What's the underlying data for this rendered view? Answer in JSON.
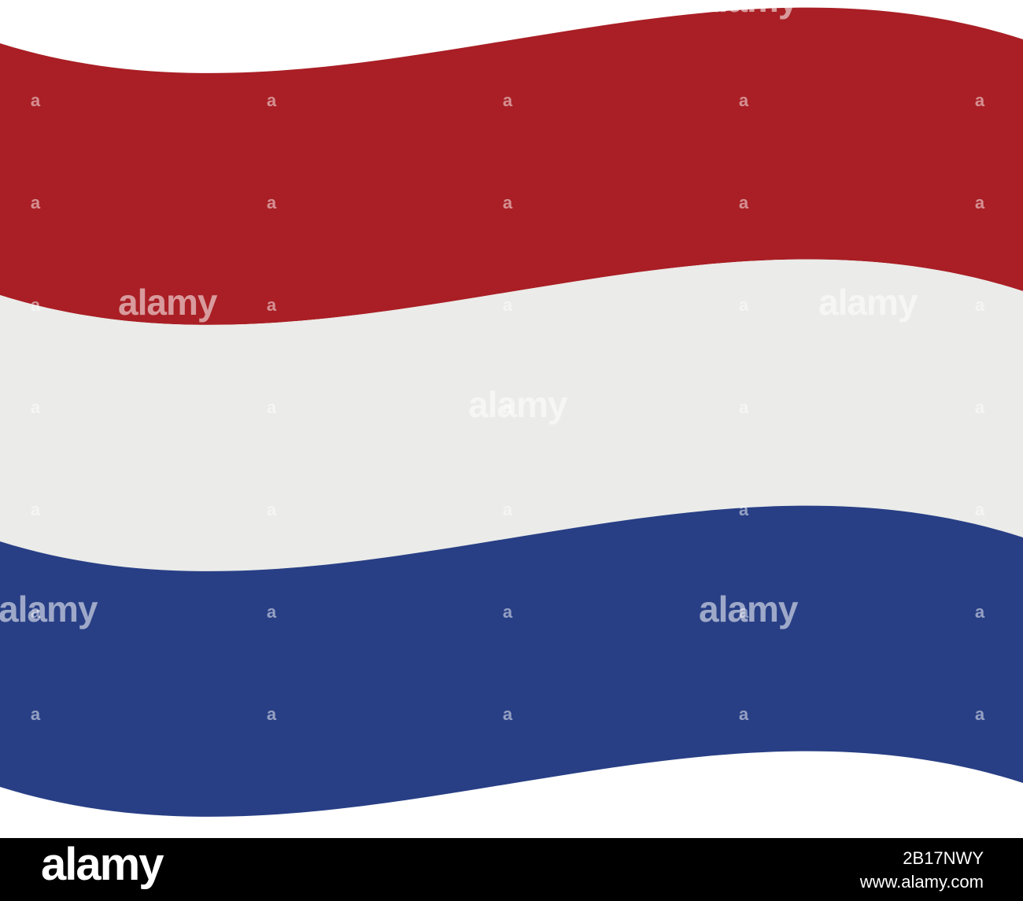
{
  "watermark": "alamy",
  "watermark_mark": "a",
  "footer": {
    "logo": "alamy",
    "image_id": "2B17NWY",
    "url": "www.alamy.com"
  }
}
